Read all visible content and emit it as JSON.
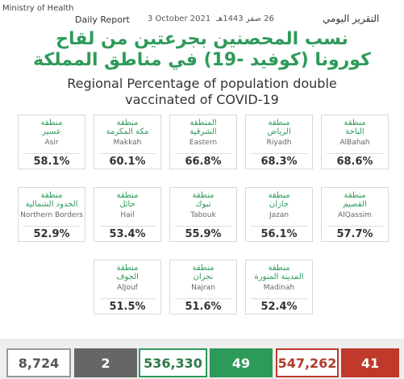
{
  "header": {
    "ministry": "Ministry of Health",
    "report_en": "Daily Report",
    "date_en": "3 October 2021",
    "date_hijri": "26 صفر 1443هـ",
    "report_ar": "التقرير اليومي"
  },
  "title": {
    "arabic": [
      "نسب المحصنين بجرعتين من لقاح",
      "كورونا (كوفيد -19) في مناطق المملكة"
    ],
    "english": [
      "Regional Percentage of population double",
      "vaccinated of COVID-19"
    ]
  },
  "rows": [
    [
      {
        "arabic": [
          "منطقة",
          "عسير"
        ],
        "english": "Asir",
        "percent": "58.1%"
      },
      {
        "arabic": [
          "منطقة",
          "مكة المكرمة"
        ],
        "english": "Makkah",
        "percent": "60.1%"
      },
      {
        "arabic": [
          "المنطقة",
          "الشرقية"
        ],
        "english": "Eastern",
        "percent": "66.8%"
      },
      {
        "arabic": [
          "منطقة",
          "الرياض"
        ],
        "english": "Riyadh",
        "percent": "68.3%"
      },
      {
        "arabic": [
          "منطقة",
          "الباحة"
        ],
        "english": "AlBahah",
        "percent": "68.6%"
      }
    ],
    [
      {
        "arabic": [
          "منطقة",
          "الحدود الشمالية"
        ],
        "english": "Northern Borders",
        "percent": "52.9%"
      },
      {
        "arabic": [
          "منطقة",
          "حائل"
        ],
        "english": "Hail",
        "percent": "53.4%"
      },
      {
        "arabic": [
          "منطقة",
          "تبوك"
        ],
        "english": "Tabouk",
        "percent": "55.9%"
      },
      {
        "arabic": [
          "منطقة",
          "جازان"
        ],
        "english": "Jazan",
        "percent": "56.1%"
      },
      {
        "arabic": [
          "منطقة",
          "القصيم"
        ],
        "english": "AlQassim",
        "percent": "57.7%"
      }
    ],
    [
      {
        "arabic": [
          "منطقة",
          "الجوف"
        ],
        "english": "AlJouf",
        "percent": "51.5%"
      },
      {
        "arabic": [
          "منطقة",
          "نجران"
        ],
        "english": "Najran",
        "percent": "51.6%"
      },
      {
        "arabic": [
          "منطقة",
          "المدينة المنورة"
        ],
        "english": "Madinah",
        "percent": "52.4%"
      }
    ]
  ],
  "stats": [
    "8,724",
    "2",
    "536,330",
    "49",
    "547,262",
    "41"
  ]
}
